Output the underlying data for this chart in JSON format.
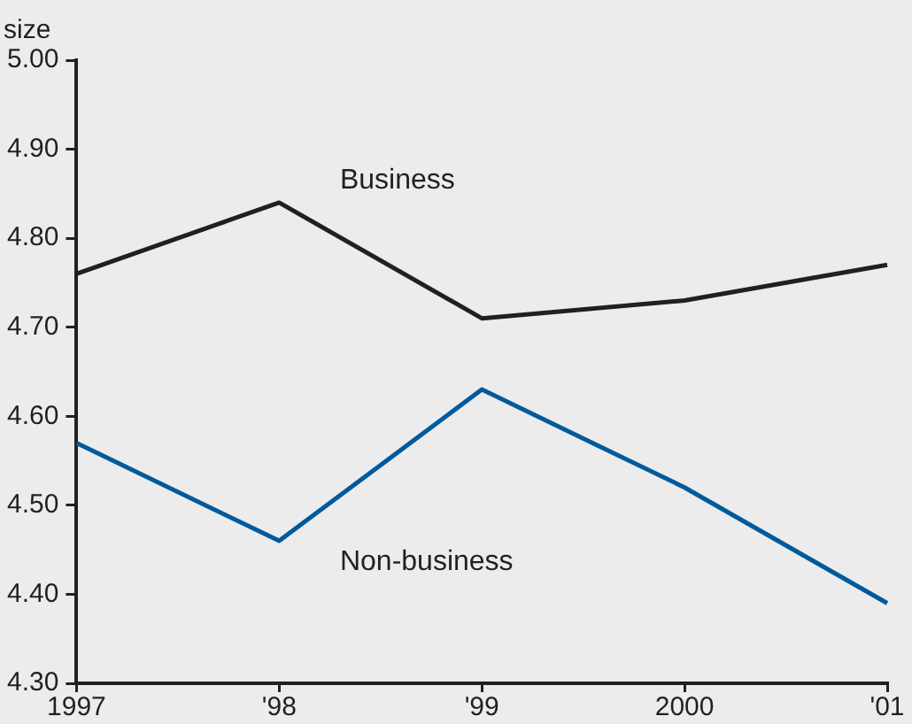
{
  "chart_data": {
    "type": "line",
    "ylabel": "size",
    "categories": [
      "1997",
      "'98",
      "'99",
      "2000",
      "'01"
    ],
    "series": [
      {
        "name": "Business",
        "color": "#231f20",
        "values": [
          4.76,
          4.84,
          4.71,
          4.73,
          4.77
        ]
      },
      {
        "name": "Non-business",
        "color": "#005a9c",
        "values": [
          4.57,
          4.46,
          4.63,
          4.52,
          4.39
        ]
      }
    ],
    "ylim": [
      4.3,
      5.0
    ],
    "yticks": [
      {
        "value": 4.3,
        "label": "4.30"
      },
      {
        "value": 4.4,
        "label": "4.40"
      },
      {
        "value": 4.5,
        "label": "4.50"
      },
      {
        "value": 4.6,
        "label": "4.60"
      },
      {
        "value": 4.7,
        "label": "4.70"
      },
      {
        "value": 4.8,
        "label": "4.80"
      },
      {
        "value": 4.9,
        "label": "4.90"
      },
      {
        "value": 5.0,
        "label": "5.00"
      }
    ],
    "grid": false,
    "legend": false,
    "marker": "none",
    "line_style": "solid"
  }
}
